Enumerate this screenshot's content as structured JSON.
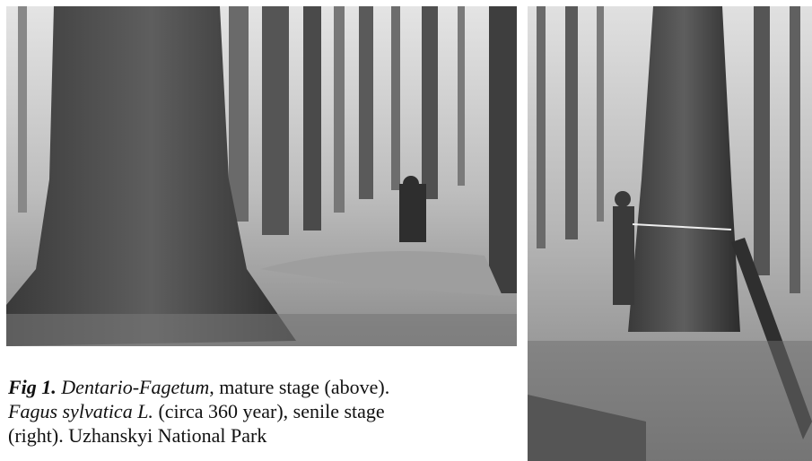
{
  "caption": {
    "label": "Fig 1.",
    "taxon1": "Dentario-Fagetum",
    "text1": ", mature stage (above).",
    "taxon2": "Fagus sylvatica L.",
    "text2": "(circa 360 year), senile stage",
    "text3": "(right). Uzhanskyi National Park"
  }
}
